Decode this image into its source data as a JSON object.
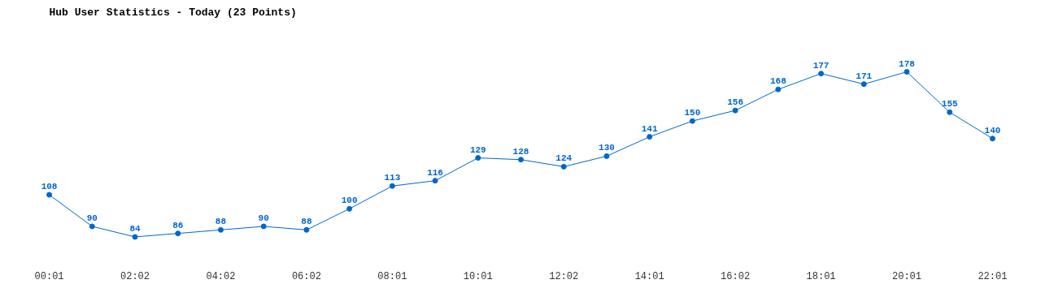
{
  "chart_data": {
    "type": "line",
    "title": "Hub User Statistics - Today (23 Points)",
    "categories": [
      "00:01",
      null,
      "02:02",
      null,
      "04:02",
      null,
      "06:02",
      null,
      "08:01",
      null,
      "10:01",
      null,
      "12:02",
      null,
      "14:01",
      null,
      "16:02",
      null,
      "18:01",
      null,
      "20:01",
      null,
      "22:01"
    ],
    "series": [
      {
        "color": "#0066cc",
        "values": [
          108,
          90,
          84,
          86,
          88,
          90,
          88,
          100,
          113,
          116,
          129,
          128,
          124,
          130,
          141,
          150,
          156,
          168,
          177,
          171,
          178,
          155,
          140
        ]
      }
    ],
    "data_labels": true,
    "marker": "circle",
    "line_style": "solid",
    "grid": false
  }
}
